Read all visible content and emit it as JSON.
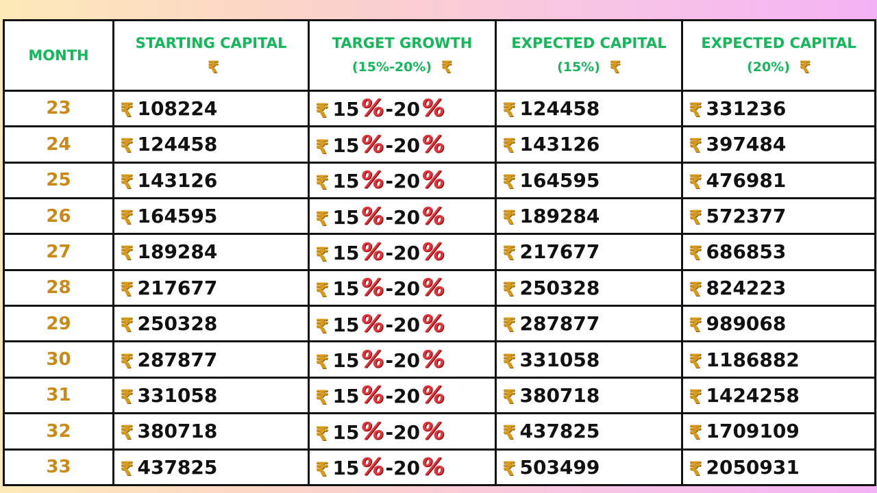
{
  "headers": {
    "month": "MONTH",
    "starting": "STARTING CAPITAL",
    "growth_line1": "TARGET GROWTH",
    "growth_line2": "(15%-20%)",
    "exp15_line1": "EXPECTED CAPITAL",
    "exp15_line2": "(15%)",
    "exp20_line1": "EXPECTED CAPITAL",
    "exp20_line2": "(20%)"
  },
  "currency_symbol": "₹",
  "growth": {
    "low": "15",
    "high": "20",
    "pct": "%",
    "dash": "-"
  },
  "rows": [
    {
      "month": "23",
      "start": "108224",
      "exp15": "124458",
      "exp20": "331236"
    },
    {
      "month": "24",
      "start": "124458",
      "exp15": "143126",
      "exp20": "397484"
    },
    {
      "month": "25",
      "start": "143126",
      "exp15": "164595",
      "exp20": "476981"
    },
    {
      "month": "26",
      "start": "164595",
      "exp15": "189284",
      "exp20": "572377"
    },
    {
      "month": "27",
      "start": "189284",
      "exp15": "217677",
      "exp20": "686853"
    },
    {
      "month": "28",
      "start": "217677",
      "exp15": "250328",
      "exp20": "824223"
    },
    {
      "month": "29",
      "start": "250328",
      "exp15": "287877",
      "exp20": "989068"
    },
    {
      "month": "30",
      "start": "287877",
      "exp15": "331058",
      "exp20": "1186882"
    },
    {
      "month": "31",
      "start": "331058",
      "exp15": "380718",
      "exp20": "1424258"
    },
    {
      "month": "32",
      "start": "380718",
      "exp15": "437825",
      "exp20": "1709109"
    },
    {
      "month": "33",
      "start": "437825",
      "exp15": "503499",
      "exp20": "2050931"
    }
  ],
  "colors": {
    "header_text": "#14b85a",
    "month_text": "#c98a18",
    "rupee": "#d79a1a",
    "percent": "#e2343c"
  }
}
